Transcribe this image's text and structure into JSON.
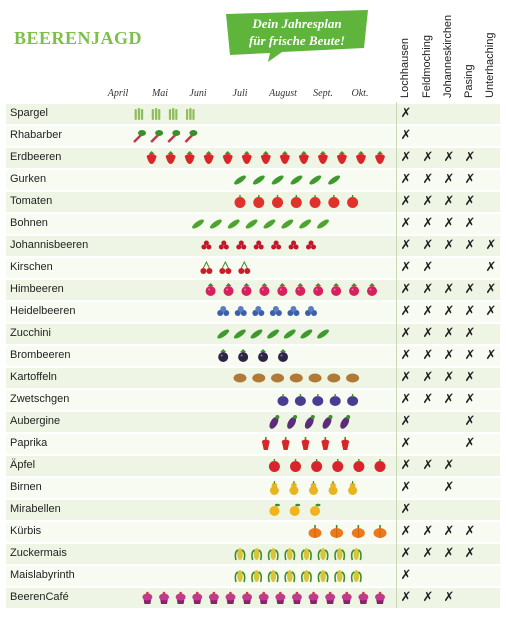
{
  "title": "BEERENJAGD",
  "banner": {
    "line1": "Dein Jahresplan",
    "line2": "für frische Beute!",
    "color": "#5fb43c"
  },
  "colors": {
    "accent": "#7cc04a",
    "row_shade": "#eef5e4"
  },
  "chart_data": {
    "type": "table",
    "months": [
      "April",
      "Mai",
      "Juni",
      "Juli",
      "August",
      "Sept.",
      "Okt."
    ],
    "locations": [
      "Lochhausen",
      "Feldmoching",
      "Johanneskirchen",
      "Pasing",
      "Unterhaching"
    ],
    "mark": "✗",
    "crops": [
      {
        "name": "Spargel",
        "icon": "asparagus",
        "color": "#8fbf5a",
        "count": 4,
        "start": 0.5,
        "end": 1.8,
        "locations": [
          1,
          0,
          0,
          0,
          0
        ]
      },
      {
        "name": "Rhabarber",
        "icon": "rhubarb",
        "color": "#c0394b",
        "count": 4,
        "start": 0.5,
        "end": 1.8,
        "locations": [
          1,
          0,
          0,
          0,
          0
        ]
      },
      {
        "name": "Erdbeeren",
        "icon": "strawberry",
        "color": "#d9262b",
        "count": 13,
        "start": 0.8,
        "end": 6.5,
        "locations": [
          1,
          1,
          1,
          1,
          0
        ]
      },
      {
        "name": "Gurken",
        "icon": "cucumber",
        "color": "#3f9a2e",
        "count": 6,
        "start": 3.0,
        "end": 5.3,
        "locations": [
          1,
          1,
          1,
          1,
          0
        ]
      },
      {
        "name": "Tomaten",
        "icon": "tomato",
        "color": "#e0312a",
        "count": 7,
        "start": 3.0,
        "end": 5.8,
        "locations": [
          1,
          1,
          1,
          1,
          0
        ]
      },
      {
        "name": "Bohnen",
        "icon": "bean",
        "color": "#4ea42f",
        "count": 8,
        "start": 2.0,
        "end": 5.0,
        "locations": [
          1,
          1,
          1,
          1,
          0
        ]
      },
      {
        "name": "Johannisbeeren",
        "icon": "currant",
        "color": "#c0182a",
        "count": 7,
        "start": 2.2,
        "end": 4.7,
        "locations": [
          1,
          1,
          1,
          1,
          1
        ]
      },
      {
        "name": "Kirschen",
        "icon": "cherry",
        "color": "#c81e2a",
        "count": 3,
        "start": 2.2,
        "end": 3.1,
        "locations": [
          1,
          1,
          0,
          0,
          1
        ]
      },
      {
        "name": "Himbeeren",
        "icon": "raspberry",
        "color": "#d6205f",
        "count": 10,
        "start": 2.3,
        "end": 6.3,
        "locations": [
          1,
          1,
          1,
          1,
          1
        ]
      },
      {
        "name": "Heidelbeeren",
        "icon": "blueberry",
        "color": "#3d5fa8",
        "count": 6,
        "start": 2.6,
        "end": 4.7,
        "locations": [
          1,
          1,
          1,
          1,
          1
        ]
      },
      {
        "name": "Zucchini",
        "icon": "zucchini",
        "color": "#3f9a2e",
        "count": 7,
        "start": 2.6,
        "end": 5.0,
        "locations": [
          1,
          1,
          1,
          1,
          0
        ]
      },
      {
        "name": "Brombeeren",
        "icon": "blackberry",
        "color": "#2e2545",
        "count": 4,
        "start": 2.6,
        "end": 4.0,
        "locations": [
          1,
          1,
          1,
          1,
          1
        ]
      },
      {
        "name": "Kartoffeln",
        "icon": "potato",
        "color": "#b07a36",
        "count": 7,
        "start": 3.0,
        "end": 5.8,
        "locations": [
          1,
          1,
          1,
          1,
          0
        ]
      },
      {
        "name": "Zwetschgen",
        "icon": "plum",
        "color": "#4a3c92",
        "count": 5,
        "start": 4.0,
        "end": 5.8,
        "locations": [
          1,
          1,
          1,
          1,
          0
        ]
      },
      {
        "name": "Aubergine",
        "icon": "eggplant",
        "color": "#5a2d7a",
        "count": 5,
        "start": 3.8,
        "end": 5.6,
        "locations": [
          1,
          0,
          0,
          1,
          0
        ]
      },
      {
        "name": "Paprika",
        "icon": "pepper",
        "color": "#d8272a",
        "count": 5,
        "start": 3.6,
        "end": 5.6,
        "locations": [
          1,
          0,
          0,
          1,
          0
        ]
      },
      {
        "name": "Äpfel",
        "icon": "apple",
        "color": "#d8242a",
        "count": 6,
        "start": 3.8,
        "end": 6.5,
        "locations": [
          1,
          1,
          1,
          0,
          0
        ]
      },
      {
        "name": "Birnen",
        "icon": "pear",
        "color": "#e8b520",
        "count": 5,
        "start": 3.8,
        "end": 5.8,
        "locations": [
          1,
          0,
          1,
          0,
          0
        ]
      },
      {
        "name": "Mirabellen",
        "icon": "mirabelle",
        "color": "#f0b51e",
        "count": 3,
        "start": 3.8,
        "end": 4.8,
        "locations": [
          1,
          0,
          0,
          0,
          0
        ]
      },
      {
        "name": "Kürbis",
        "icon": "pumpkin",
        "color": "#ea7a1c",
        "count": 4,
        "start": 4.8,
        "end": 6.5,
        "locations": [
          1,
          1,
          1,
          1,
          0
        ]
      },
      {
        "name": "Zuckermais",
        "icon": "corn",
        "color": "#d9c43a",
        "count": 8,
        "start": 3.0,
        "end": 5.9,
        "locations": [
          1,
          1,
          1,
          1,
          0
        ]
      },
      {
        "name": "Maislabyrinth",
        "icon": "corn",
        "color": "#d9c43a",
        "count": 8,
        "start": 3.0,
        "end": 5.9,
        "locations": [
          1,
          0,
          0,
          0,
          0
        ]
      },
      {
        "name": "BeerenCafé",
        "icon": "cupcake",
        "color": "#8e1f6a",
        "count": 15,
        "start": 0.7,
        "end": 6.5,
        "locations": [
          1,
          1,
          1,
          0,
          0
        ]
      }
    ]
  }
}
